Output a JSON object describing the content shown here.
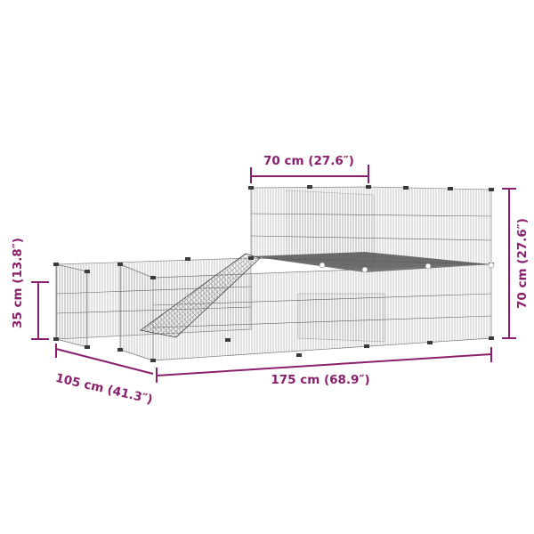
{
  "colors": {
    "dimension": "#8a1f6e",
    "wire": "#8c8c8c",
    "deck": "#505050",
    "post": "#3a3a3a"
  },
  "dimensions": {
    "top_width": "70 cm (27.6″)",
    "right_height": "70 cm (27.6″)",
    "left_height": "35 cm (13.8″)",
    "length": "175 cm (68.9″)",
    "depth": "105 cm (41.3″)"
  }
}
